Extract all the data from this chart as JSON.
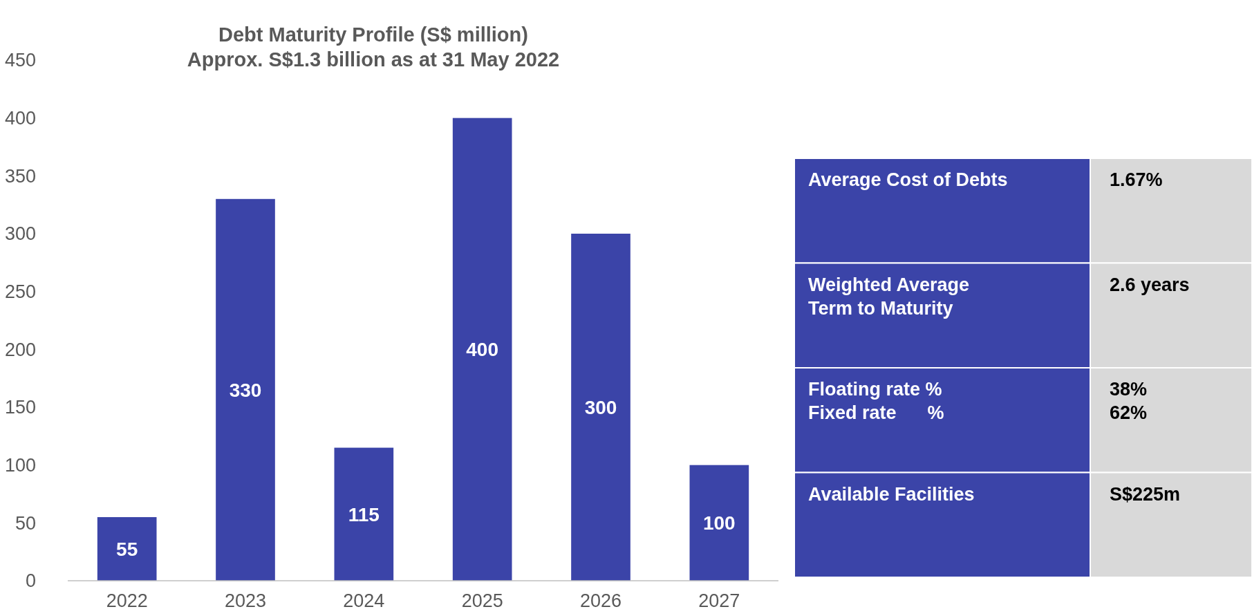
{
  "chart_data": [
    {
      "type": "bar",
      "title": "Debt Maturity Profile (S$ million)",
      "subtitle": "Approx. S$1.3 billion as at 31 May 2022",
      "categories": [
        "2022",
        "2023",
        "2024",
        "2025",
        "2026",
        "2027"
      ],
      "values": [
        55,
        330,
        115,
        400,
        300,
        100
      ],
      "color": "#3b44a8",
      "ylim": [
        0,
        450
      ],
      "yticks": [
        0,
        50,
        100,
        150,
        200,
        250,
        300,
        350,
        400,
        450
      ],
      "grid": false,
      "data_labels": true
    },
    {
      "type": "other",
      "annotations": [
        "Average Cost of Debts",
        "1.67%",
        "Weighted Average\nTerm to Maturity",
        "2.6 years",
        "Floating rate %\nFixed rate      %",
        "38%\n62%",
        "Available Facilities",
        "S$225m"
      ]
    }
  ]
}
